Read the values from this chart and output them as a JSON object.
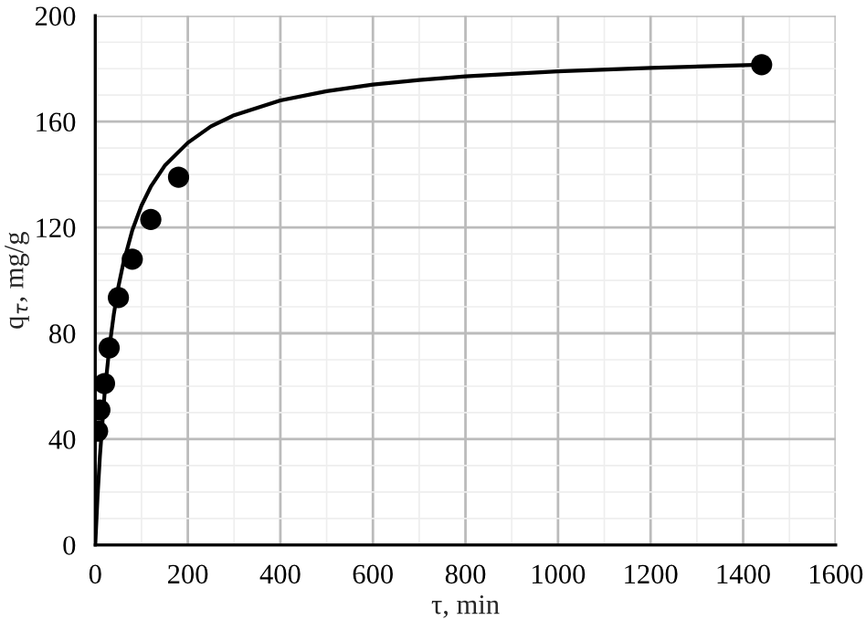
{
  "chart_data": {
    "type": "scatter",
    "xlabel": "τ, min",
    "ylabel": "q$_{τ}$, mg/g",
    "xlim": [
      0,
      1600
    ],
    "xticks": [
      0,
      200,
      400,
      600,
      800,
      1000,
      1200,
      1400,
      1600
    ],
    "ylim": [
      0,
      200
    ],
    "yticks": [
      0,
      40,
      80,
      120,
      160,
      200
    ],
    "grid": true,
    "legend": false,
    "series": [
      {
        "color": "#000000",
        "marker": "circle",
        "x": [
          5,
          10,
          20,
          30,
          50,
          80,
          120,
          180,
          1440
        ],
        "values": [
          43,
          51,
          61,
          74.5,
          93.5,
          108,
          123,
          139,
          181.5
        ]
      },
      {
        "type": "line",
        "color": "#000000",
        "marker": "none",
        "line_style": "solid",
        "x": [
          0,
          5,
          10,
          20,
          30,
          40,
          50,
          60,
          80,
          100,
          120,
          150,
          200,
          250,
          300,
          400,
          500,
          600,
          700,
          800,
          1000,
          1200,
          1440
        ],
        "values": [
          0,
          18.4,
          33.4,
          56.8,
          73.9,
          87.1,
          97.6,
          106,
          118.9,
          128.3,
          135.4,
          143.3,
          152,
          158.2,
          162.4,
          168,
          171.5,
          174,
          175.7,
          177.1,
          179,
          180.3,
          181.5
        ]
      }
    ]
  }
}
